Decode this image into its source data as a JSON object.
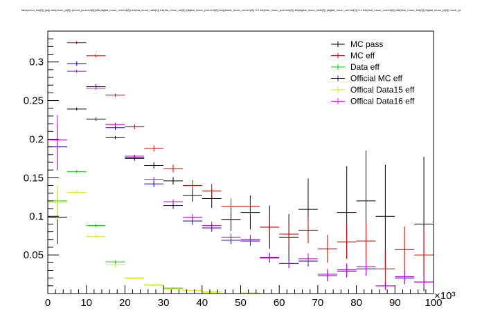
{
  "chart_data": {
    "type": "scatter",
    "title": "fabs(muon_eta[0]) (pa|| abs(muon_pt[0]) (muon_pcurrent[0]))&&(digital_muon_current[0]) &&(bla_muon_ratio[0]) &&(bla_muon_rbl[0]) (digital_muon_pcurrent[0]) &&(plastic_muon_current[0]) 0.2 &&(blue_muon_pcurrent[0]) &&(digital_muon_ratio[0]) (digital_muon_current[0]) 0.1 &&(blue_muon_current[0]) &&(blue_muon_eta[0]) (digital_muon_pt[0]) muon_pt",
    "xlabel": "",
    "ylabel": "",
    "x_multiplier_label": "×10³",
    "xlim": [
      0,
      100
    ],
    "ylim": [
      0,
      0.34
    ],
    "x_ticks": [
      0,
      10,
      20,
      30,
      40,
      50,
      60,
      70,
      80,
      90,
      100
    ],
    "y_ticks": [
      0.05,
      0.1,
      0.15,
      0.2,
      0.25,
      0.3
    ],
    "x_tick_labels": [
      "0",
      "10",
      "20",
      "30",
      "40",
      "50",
      "60",
      "70",
      "80",
      "90",
      "100"
    ],
    "y_tick_labels": [
      "0.05",
      "0.1",
      "0.15",
      "0.2",
      "0.25",
      "0.3"
    ],
    "grid": false,
    "legend_position": "top-right",
    "series": [
      {
        "name": "MC pass",
        "color": "#000000",
        "points": [
          {
            "x": 2.5,
            "y": 0.099,
            "xerr": 2.5,
            "yerr": 0.035
          },
          {
            "x": 7.5,
            "y": 0.239,
            "xerr": 2.5,
            "yerr": 0.002
          },
          {
            "x": 12.5,
            "y": 0.226,
            "xerr": 2.5,
            "yerr": 0.002
          },
          {
            "x": 17.5,
            "y": 0.202,
            "xerr": 2.5,
            "yerr": 0.002
          },
          {
            "x": 22.5,
            "y": 0.176,
            "xerr": 2.5,
            "yerr": 0.003
          },
          {
            "x": 27.5,
            "y": 0.166,
            "xerr": 2.5,
            "yerr": 0.004
          },
          {
            "x": 32.5,
            "y": 0.146,
            "xerr": 2.5,
            "yerr": 0.005
          },
          {
            "x": 37.5,
            "y": 0.127,
            "xerr": 2.5,
            "yerr": 0.008
          },
          {
            "x": 42.5,
            "y": 0.123,
            "xerr": 2.5,
            "yerr": 0.012
          },
          {
            "x": 47.5,
            "y": 0.096,
            "xerr": 2.5,
            "yerr": 0.015
          },
          {
            "x": 52.5,
            "y": 0.105,
            "xerr": 2.5,
            "yerr": 0.022
          },
          {
            "x": 57.5,
            "y": 0.086,
            "xerr": 2.5,
            "yerr": 0.028
          },
          {
            "x": 62.5,
            "y": 0.073,
            "xerr": 2.5,
            "yerr": 0.03
          },
          {
            "x": 67.5,
            "y": 0.109,
            "xerr": 2.5,
            "yerr": 0.04
          },
          {
            "x": 77.5,
            "y": 0.105,
            "xerr": 2.5,
            "yerr": 0.06
          },
          {
            "x": 82.5,
            "y": 0.12,
            "xerr": 2.5,
            "yerr": 0.065
          },
          {
            "x": 87.5,
            "y": 0.1,
            "xerr": 2.5,
            "yerr": 0.067
          },
          {
            "x": 97.5,
            "y": 0.09,
            "xerr": 2.5,
            "yerr": 0.087
          }
        ]
      },
      {
        "name": "MC eff",
        "color": "#cc0000",
        "points": [
          {
            "x": 7.5,
            "y": 0.325,
            "xerr": 2.5,
            "yerr": 0.002
          },
          {
            "x": 12.5,
            "y": 0.308,
            "xerr": 2.5,
            "yerr": 0.002
          },
          {
            "x": 17.5,
            "y": 0.257,
            "xerr": 2.5,
            "yerr": 0.002
          },
          {
            "x": 22.5,
            "y": 0.216,
            "xerr": 2.5,
            "yerr": 0.003
          },
          {
            "x": 27.5,
            "y": 0.188,
            "xerr": 2.5,
            "yerr": 0.004
          },
          {
            "x": 32.5,
            "y": 0.162,
            "xerr": 2.5,
            "yerr": 0.005
          },
          {
            "x": 37.5,
            "y": 0.14,
            "xerr": 2.5,
            "yerr": 0.007
          },
          {
            "x": 42.5,
            "y": 0.133,
            "xerr": 2.5,
            "yerr": 0.009
          },
          {
            "x": 47.5,
            "y": 0.113,
            "xerr": 2.5,
            "yerr": 0.01
          },
          {
            "x": 52.5,
            "y": 0.113,
            "xerr": 2.5,
            "yerr": 0.012
          },
          {
            "x": 57.5,
            "y": 0.086,
            "xerr": 2.5,
            "yerr": 0.012
          },
          {
            "x": 62.5,
            "y": 0.077,
            "xerr": 2.5,
            "yerr": 0.014
          },
          {
            "x": 67.5,
            "y": 0.082,
            "xerr": 2.5,
            "yerr": 0.017
          },
          {
            "x": 72.5,
            "y": 0.058,
            "xerr": 2.5,
            "yerr": 0.018
          },
          {
            "x": 77.5,
            "y": 0.067,
            "xerr": 2.5,
            "yerr": 0.022
          },
          {
            "x": 82.5,
            "y": 0.068,
            "xerr": 2.5,
            "yerr": 0.025
          },
          {
            "x": 87.5,
            "y": 0.032,
            "xerr": 2.5,
            "yerr": 0.022
          },
          {
            "x": 92.5,
            "y": 0.057,
            "xerr": 2.5,
            "yerr": 0.03
          },
          {
            "x": 97.5,
            "y": 0.05,
            "xerr": 2.5,
            "yerr": 0.035
          }
        ]
      },
      {
        "name": "Data eff",
        "color": "#00cc00",
        "points": [
          {
            "x": 2.5,
            "y": 0.12,
            "xerr": 2.5,
            "yerr": 0.006
          },
          {
            "x": 7.5,
            "y": 0.158,
            "xerr": 2.5,
            "yerr": 0.002
          },
          {
            "x": 12.5,
            "y": 0.088,
            "xerr": 2.5,
            "yerr": 0.002
          },
          {
            "x": 17.5,
            "y": 0.041,
            "xerr": 2.5,
            "yerr": 0.002
          },
          {
            "x": 22.5,
            "y": 0.02,
            "xerr": 2.5,
            "yerr": 0.001
          },
          {
            "x": 27.5,
            "y": 0.011,
            "xerr": 2.5,
            "yerr": 0.001
          },
          {
            "x": 32.5,
            "y": 0.007,
            "xerr": 2.5,
            "yerr": 0.001
          },
          {
            "x": 37.5,
            "y": 0.004,
            "xerr": 2.5,
            "yerr": 0.001
          },
          {
            "x": 42.5,
            "y": 0.002,
            "xerr": 2.5,
            "yerr": 0.001
          }
        ]
      },
      {
        "name": "Official MC eff",
        "color": "#0000cc",
        "points": [
          {
            "x": 2.5,
            "y": 0.19,
            "xerr": 2.5,
            "yerr": 0.03
          },
          {
            "x": 7.5,
            "y": 0.298,
            "xerr": 2.5,
            "yerr": 0.003
          },
          {
            "x": 12.5,
            "y": 0.268,
            "xerr": 2.5,
            "yerr": 0.003
          },
          {
            "x": 17.5,
            "y": 0.215,
            "xerr": 2.5,
            "yerr": 0.003
          },
          {
            "x": 22.5,
            "y": 0.175,
            "xerr": 2.5,
            "yerr": 0.003
          },
          {
            "x": 27.5,
            "y": 0.142,
            "xerr": 2.5,
            "yerr": 0.004
          },
          {
            "x": 32.5,
            "y": 0.114,
            "xerr": 2.5,
            "yerr": 0.004
          },
          {
            "x": 37.5,
            "y": 0.094,
            "xerr": 2.5,
            "yerr": 0.005
          },
          {
            "x": 42.5,
            "y": 0.085,
            "xerr": 2.5,
            "yerr": 0.005
          },
          {
            "x": 47.5,
            "y": 0.069,
            "xerr": 2.5,
            "yerr": 0.005
          },
          {
            "x": 52.5,
            "y": 0.068,
            "xerr": 2.5,
            "yerr": 0.006
          },
          {
            "x": 57.5,
            "y": 0.046,
            "xerr": 2.5,
            "yerr": 0.006
          },
          {
            "x": 62.5,
            "y": 0.039,
            "xerr": 2.5,
            "yerr": 0.006
          },
          {
            "x": 67.5,
            "y": 0.042,
            "xerr": 2.5,
            "yerr": 0.007
          },
          {
            "x": 72.5,
            "y": 0.023,
            "xerr": 2.5,
            "yerr": 0.007
          },
          {
            "x": 77.5,
            "y": 0.029,
            "xerr": 2.5,
            "yerr": 0.008
          },
          {
            "x": 82.5,
            "y": 0.032,
            "xerr": 2.5,
            "yerr": 0.009
          },
          {
            "x": 87.5,
            "y": 0.01,
            "xerr": 2.5,
            "yerr": 0.005
          },
          {
            "x": 92.5,
            "y": 0.02,
            "xerr": 2.5,
            "yerr": 0.008
          },
          {
            "x": 97.5,
            "y": 0.015,
            "xerr": 2.5,
            "yerr": 0.008
          }
        ]
      },
      {
        "name": "Offical Data15 eff",
        "color": "#e6e600",
        "points": [
          {
            "x": 2.5,
            "y": 0.118,
            "xerr": 2.5,
            "yerr": 0.022
          },
          {
            "x": 7.5,
            "y": 0.131,
            "xerr": 2.5,
            "yerr": 0.002
          },
          {
            "x": 12.5,
            "y": 0.074,
            "xerr": 2.5,
            "yerr": 0.002
          },
          {
            "x": 17.5,
            "y": 0.037,
            "xerr": 2.5,
            "yerr": 0.002
          },
          {
            "x": 22.5,
            "y": 0.02,
            "xerr": 2.5,
            "yerr": 0.001
          },
          {
            "x": 27.5,
            "y": 0.011,
            "xerr": 2.5,
            "yerr": 0.001
          },
          {
            "x": 32.5,
            "y": 0.006,
            "xerr": 2.5,
            "yerr": 0.001
          },
          {
            "x": 37.5,
            "y": 0.004,
            "xerr": 2.5,
            "yerr": 0.001
          },
          {
            "x": 42.5,
            "y": 0.002,
            "xerr": 2.5,
            "yerr": 0.001
          },
          {
            "x": 52.5,
            "y": 0.001,
            "xerr": 2.5,
            "yerr": 0.001
          }
        ]
      },
      {
        "name": "Offical Data16 eff",
        "color": "#cc00cc",
        "points": [
          {
            "x": 2.5,
            "y": 0.199,
            "xerr": 2.5,
            "yerr": 0.032
          },
          {
            "x": 7.5,
            "y": 0.288,
            "xerr": 2.5,
            "yerr": 0.002
          },
          {
            "x": 12.5,
            "y": 0.266,
            "xerr": 2.5,
            "yerr": 0.002
          },
          {
            "x": 17.5,
            "y": 0.219,
            "xerr": 2.5,
            "yerr": 0.002
          },
          {
            "x": 22.5,
            "y": 0.178,
            "xerr": 2.5,
            "yerr": 0.002
          },
          {
            "x": 27.5,
            "y": 0.148,
            "xerr": 2.5,
            "yerr": 0.003
          },
          {
            "x": 32.5,
            "y": 0.119,
            "xerr": 2.5,
            "yerr": 0.003
          },
          {
            "x": 37.5,
            "y": 0.099,
            "xerr": 2.5,
            "yerr": 0.004
          },
          {
            "x": 42.5,
            "y": 0.088,
            "xerr": 2.5,
            "yerr": 0.005
          },
          {
            "x": 47.5,
            "y": 0.073,
            "xerr": 2.5,
            "yerr": 0.005
          },
          {
            "x": 52.5,
            "y": 0.07,
            "xerr": 2.5,
            "yerr": 0.006
          },
          {
            "x": 57.5,
            "y": 0.047,
            "xerr": 2.5,
            "yerr": 0.006
          },
          {
            "x": 62.5,
            "y": 0.039,
            "xerr": 2.5,
            "yerr": 0.006
          },
          {
            "x": 67.5,
            "y": 0.045,
            "xerr": 2.5,
            "yerr": 0.007
          },
          {
            "x": 72.5,
            "y": 0.025,
            "xerr": 2.5,
            "yerr": 0.007
          },
          {
            "x": 77.5,
            "y": 0.031,
            "xerr": 2.5,
            "yerr": 0.008
          },
          {
            "x": 82.5,
            "y": 0.035,
            "xerr": 2.5,
            "yerr": 0.009
          },
          {
            "x": 87.5,
            "y": 0.01,
            "xerr": 2.5,
            "yerr": 0.005
          },
          {
            "x": 92.5,
            "y": 0.022,
            "xerr": 2.5,
            "yerr": 0.008
          },
          {
            "x": 97.5,
            "y": 0.015,
            "xerr": 2.5,
            "yerr": 0.008
          }
        ]
      }
    ]
  }
}
